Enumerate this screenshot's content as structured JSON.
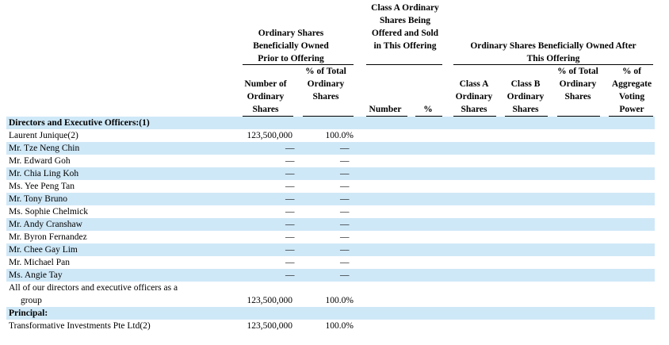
{
  "header": {
    "group_prior": "Ordinary Shares Beneficially Owned Prior to Offering",
    "group_offered": "Class A Ordinary Shares Being Offered and Sold in This Offering",
    "group_after": "Ordinary Shares Beneficially Owned After This Offering",
    "col_number_ordinary": "Number of Ordinary Shares",
    "col_pct_total": "% of Total Ordinary Shares",
    "col_number": "Number",
    "col_pct": "%",
    "col_class_a": "Class A Ordinary Shares",
    "col_class_b": "Class B Ordinary Shares",
    "col_pct_total_after": "% of Total Ordinary Shares",
    "col_pct_voting": "% of Aggregate Voting Power"
  },
  "section_directors": "Directors and Executive Officers:(1)",
  "rows": [
    {
      "name": "Laurent Junique(2)",
      "shares": "123,500,000",
      "pct": "100.0%"
    },
    {
      "name": "Mr. Tze Neng Chin",
      "shares": "—",
      "pct": "—"
    },
    {
      "name": "Mr. Edward Goh",
      "shares": "—",
      "pct": "—"
    },
    {
      "name": "Mr. Chia Ling Koh",
      "shares": "—",
      "pct": "—"
    },
    {
      "name": "Ms. Yee Peng Tan",
      "shares": "—",
      "pct": "—"
    },
    {
      "name": "Mr. Tony Bruno",
      "shares": "—",
      "pct": "—"
    },
    {
      "name": "Ms. Sophie Chelmick",
      "shares": "—",
      "pct": "—"
    },
    {
      "name": "Mr. Andy Cranshaw",
      "shares": "—",
      "pct": "—"
    },
    {
      "name": "Mr. Byron Fernandez",
      "shares": "—",
      "pct": "—"
    },
    {
      "name": "Mr. Chee Gay Lim",
      "shares": "—",
      "pct": "—"
    },
    {
      "name": "Mr. Michael Pan",
      "shares": "—",
      "pct": "—"
    },
    {
      "name": "Ms. Angie Tay",
      "shares": "—",
      "pct": "—"
    }
  ],
  "group_row": {
    "line1": "All of our directors and executive officers as a",
    "line2": "group",
    "shares": "123,500,000",
    "pct": "100.0%"
  },
  "section_principal": "Principal:",
  "principal_row": {
    "name": "Transformative Investments Pte Ltd(2)",
    "shares": "123,500,000",
    "pct": "100.0%"
  }
}
